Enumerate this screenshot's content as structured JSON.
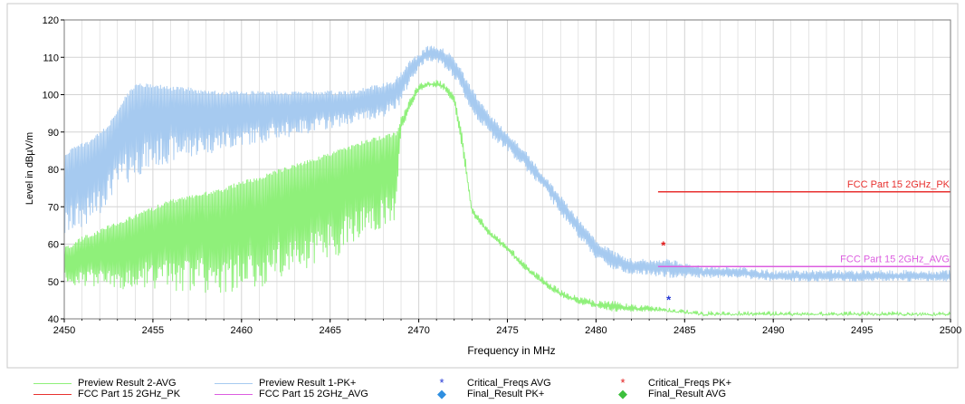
{
  "chart_data": {
    "type": "line",
    "xlabel": "Frequency in MHz",
    "ylabel": "Level in dBµV/m",
    "xlim": [
      2450,
      2500
    ],
    "ylim": [
      40,
      120
    ],
    "x_ticks": [
      "2450",
      "2455",
      "2460",
      "2465",
      "2470",
      "2475",
      "2480",
      "2485",
      "2490",
      "2495",
      "2500"
    ],
    "y_ticks": [
      "40",
      "50",
      "60",
      "70",
      "80",
      "90",
      "100",
      "110",
      "120"
    ],
    "grid": true,
    "colors": {
      "pk": "#a6caf0",
      "avg": "#8ff07a",
      "limit_pk": "#e8312f",
      "limit_avg": "#dc5ee0",
      "crit_avg": "#2437d6",
      "crit_pk": "#e31b1b",
      "final_pk": "#2f8fe0",
      "final_avg": "#3cbf3c",
      "grid": "#d4d4d4",
      "border": "#7a7a7a"
    },
    "series": [
      {
        "name": "Preview Result 1-PK+",
        "kind": "noisy-envelope",
        "x": [
          2450,
          2450.5,
          2451.5,
          2452,
          2452.5,
          2453,
          2453.5,
          2454,
          2455,
          2456,
          2457,
          2458,
          2459,
          2460,
          2462,
          2464,
          2466,
          2467,
          2468,
          2468.6,
          2469,
          2469.5,
          2470,
          2470.5,
          2471,
          2471.5,
          2472,
          2472.5,
          2473,
          2473.5,
          2474,
          2475,
          2476,
          2477,
          2478,
          2479,
          2480,
          2481,
          2482,
          2484,
          2486,
          2488,
          2490,
          2495,
          2500
        ],
        "upper": [
          84,
          86,
          88,
          90,
          92,
          96,
          100,
          103,
          103,
          102,
          102,
          101,
          101,
          101,
          101,
          101,
          101,
          102,
          103,
          104,
          106,
          109,
          111,
          113,
          113,
          112,
          110,
          106,
          102,
          98,
          95,
          90,
          85,
          79,
          73,
          67,
          61,
          58,
          56,
          56,
          54,
          54,
          53,
          53,
          53
        ],
        "lower": [
          61,
          63,
          65,
          68,
          72,
          74,
          76,
          78,
          80,
          82,
          83,
          84,
          85,
          86,
          88,
          90,
          92,
          93,
          94,
          95,
          98,
          103,
          107,
          109,
          109,
          107,
          104,
          100,
          95,
          92,
          89,
          85,
          80,
          75,
          68,
          62,
          56,
          53,
          52,
          51,
          51,
          51,
          50,
          50,
          50
        ]
      },
      {
        "name": "Preview Result 2-AVG",
        "kind": "noisy-envelope",
        "x": [
          2450,
          2451,
          2452,
          2453,
          2454,
          2455,
          2456,
          2457,
          2458,
          2459,
          2460,
          2461,
          2462,
          2464,
          2466,
          2467,
          2468,
          2468.7,
          2469,
          2469.5,
          2470,
          2470.5,
          2471,
          2471.5,
          2472,
          2472.5,
          2473,
          2474,
          2475,
          2476,
          2477,
          2478,
          2479,
          2480,
          2481,
          2482,
          2484,
          2486,
          2490,
          2495,
          2500
        ],
        "upper": [
          59,
          62,
          64,
          66,
          68,
          70,
          72,
          73,
          74,
          75,
          77,
          78,
          80,
          83,
          86,
          88,
          89,
          90,
          94,
          99,
          103,
          104,
          104,
          103,
          100,
          88,
          70,
          64,
          60,
          55,
          51,
          48,
          46,
          45,
          45,
          44,
          43,
          42,
          42,
          42,
          42
        ],
        "lower": [
          49,
          49,
          48,
          47,
          48,
          48,
          47,
          47,
          47,
          47,
          47,
          48,
          50,
          54,
          58,
          62,
          64,
          66,
          90,
          96,
          101,
          102,
          102,
          101,
          97,
          84,
          68,
          62,
          58,
          53,
          49,
          46,
          44,
          43,
          42,
          42,
          42,
          41,
          41,
          41,
          41
        ]
      },
      {
        "name": "FCC Part 15 2GHz_PK",
        "kind": "limit",
        "x": [
          2483.5,
          2500
        ],
        "y": [
          74,
          74
        ],
        "label": "FCC Part 15 2GHz_PK"
      },
      {
        "name": "FCC Part 15 2GHz_AVG",
        "kind": "limit",
        "x": [
          2483.5,
          2500
        ],
        "y": [
          54,
          54
        ],
        "label": "FCC Part 15 2GHz_AVG"
      },
      {
        "name": "Critical_Freqs AVG",
        "kind": "marker",
        "x": [
          2484.1
        ],
        "y": [
          45
        ]
      },
      {
        "name": "Critical_Freqs PK+",
        "kind": "marker",
        "x": [
          2483.8
        ],
        "y": [
          59.5
        ]
      }
    ],
    "legend": [
      {
        "label": "Preview Result 2-AVG",
        "symbol": "line",
        "color": "#8ff07a"
      },
      {
        "label": "Preview Result 1-PK+",
        "symbol": "line",
        "color": "#a6caf0"
      },
      {
        "label": "Critical_Freqs AVG",
        "symbol": "star",
        "color": "#2437d6"
      },
      {
        "label": "Critical_Freqs PK+",
        "symbol": "star",
        "color": "#e31b1b"
      },
      {
        "label": "FCC Part 15 2GHz_PK",
        "symbol": "line",
        "color": "#e8312f"
      },
      {
        "label": "FCC Part 15 2GHz_AVG",
        "symbol": "line",
        "color": "#dc5ee0"
      },
      {
        "label": "Final_Result PK+",
        "symbol": "diamond",
        "color": "#2f8fe0"
      },
      {
        "label": "Final_Result AVG",
        "symbol": "diamond",
        "color": "#3cbf3c"
      }
    ],
    "legend_position": "bottom"
  }
}
